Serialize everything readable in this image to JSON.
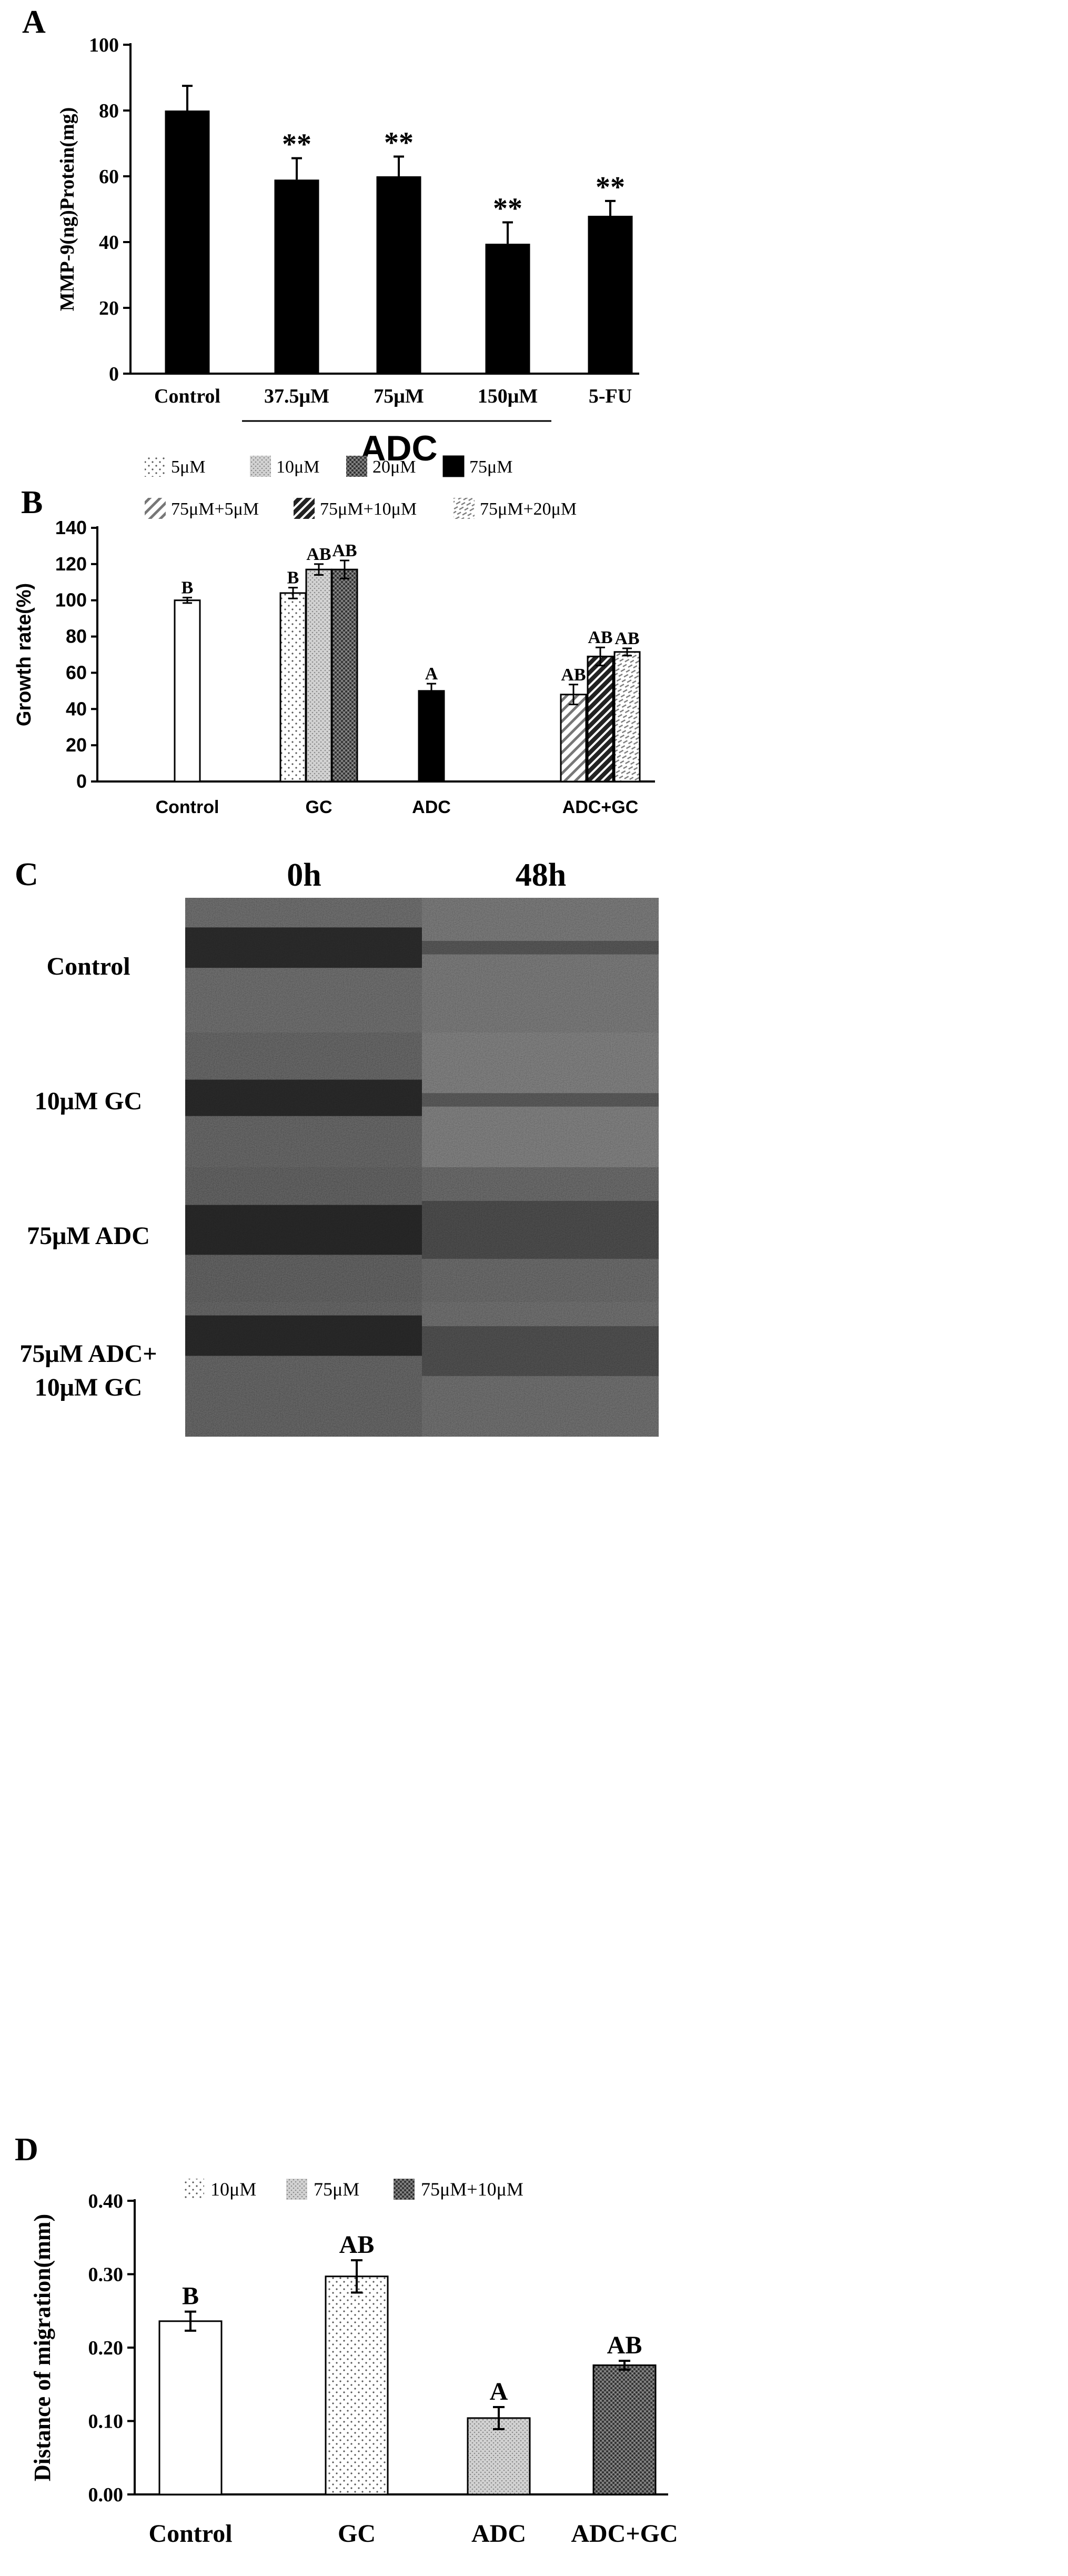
{
  "panels": {
    "A": {
      "letter": "A"
    },
    "B": {
      "letter": "B"
    },
    "C": {
      "letter": "C"
    },
    "D": {
      "letter": "D"
    }
  },
  "colors": {
    "bar_black": "#000000",
    "bar_white": "#ffffff",
    "frame": "#000000",
    "micrograph_bg": "#3a3a3a"
  },
  "chart_data": [
    {
      "panel": "A",
      "type": "bar",
      "title": "",
      "ylabel": "MMP-9(ng)Protein(mg)",
      "xlabel": "",
      "ylim": [
        0,
        100
      ],
      "yticks": [
        "0",
        "20",
        "40",
        "60",
        "80",
        "100"
      ],
      "categories": [
        "Control",
        "37.5μM",
        "75μM",
        "150μM",
        "5-FU"
      ],
      "group_labels": [
        {
          "label": "ADC",
          "categories": [
            "37.5μM",
            "75μM",
            "150μM"
          ]
        }
      ],
      "values": [
        80,
        59,
        60,
        39.5,
        48
      ],
      "errors": [
        7.5,
        6.5,
        6,
        6.5,
        4.5
      ],
      "annotations": [
        "",
        "**",
        "**",
        "**",
        "**"
      ],
      "grid": false
    },
    {
      "panel": "B",
      "type": "bar",
      "title": "",
      "ylabel": "Growth rate(%)",
      "xlabel": "",
      "ylim": [
        0,
        140
      ],
      "yticks": [
        "0",
        "20",
        "40",
        "60",
        "80",
        "100",
        "120",
        "140"
      ],
      "groups": [
        "Control",
        "GC",
        "ADC",
        "ADC+GC"
      ],
      "legend": [
        "5μM",
        "10μM",
        "20μM",
        "75μM",
        "75μM+5μM",
        "75μM+10μM",
        "75μM+20μM"
      ],
      "legend_position": "top",
      "bars": [
        {
          "group": "Control",
          "series": "",
          "value": 100,
          "error": 1.5,
          "label": "B"
        },
        {
          "group": "GC",
          "series": "5μM",
          "value": 104,
          "error": 3,
          "label": "B"
        },
        {
          "group": "GC",
          "series": "10μM",
          "value": 117,
          "error": 3,
          "label": "AB"
        },
        {
          "group": "GC",
          "series": "20μM",
          "value": 117,
          "error": 5,
          "label": "AB"
        },
        {
          "group": "ADC",
          "series": "75μM",
          "value": 50,
          "error": 4,
          "label": "A"
        },
        {
          "group": "ADC+GC",
          "series": "75μM+5μM",
          "value": 48,
          "error": 5.5,
          "label": "AB"
        },
        {
          "group": "ADC+GC",
          "series": "75μM+10μM",
          "value": 69,
          "error": 5,
          "label": "AB"
        },
        {
          "group": "ADC+GC",
          "series": "75μM+20μM",
          "value": 71.5,
          "error": 2,
          "label": "AB"
        }
      ],
      "grid": false
    },
    {
      "panel": "D",
      "type": "bar",
      "title": "",
      "ylabel": "Distance of migration(mm)",
      "xlabel": "",
      "ylim": [
        0,
        0.4
      ],
      "yticks": [
        "0.00",
        "0.10",
        "0.20",
        "0.30",
        "0.40"
      ],
      "categories": [
        "Control",
        "GC",
        "ADC",
        "ADC+GC"
      ],
      "legend": [
        "10μM",
        "75μM",
        "75μM+10μM"
      ],
      "legend_position": "top",
      "values": [
        0.236,
        0.297,
        0.104,
        0.176
      ],
      "errors": [
        0.013,
        0.022,
        0.015,
        0.006
      ],
      "annotations": [
        "B",
        "AB",
        "A",
        "AB"
      ],
      "grid": false
    }
  ],
  "micrograph": {
    "columns": [
      "0h",
      "48h"
    ],
    "rows": [
      {
        "lines": [
          "Control"
        ]
      },
      {
        "lines": [
          "10μM GC"
        ]
      },
      {
        "lines": [
          "75μM ADC"
        ]
      },
      {
        "lines": [
          "75μM ADC+",
          "10μM GC"
        ]
      }
    ]
  }
}
